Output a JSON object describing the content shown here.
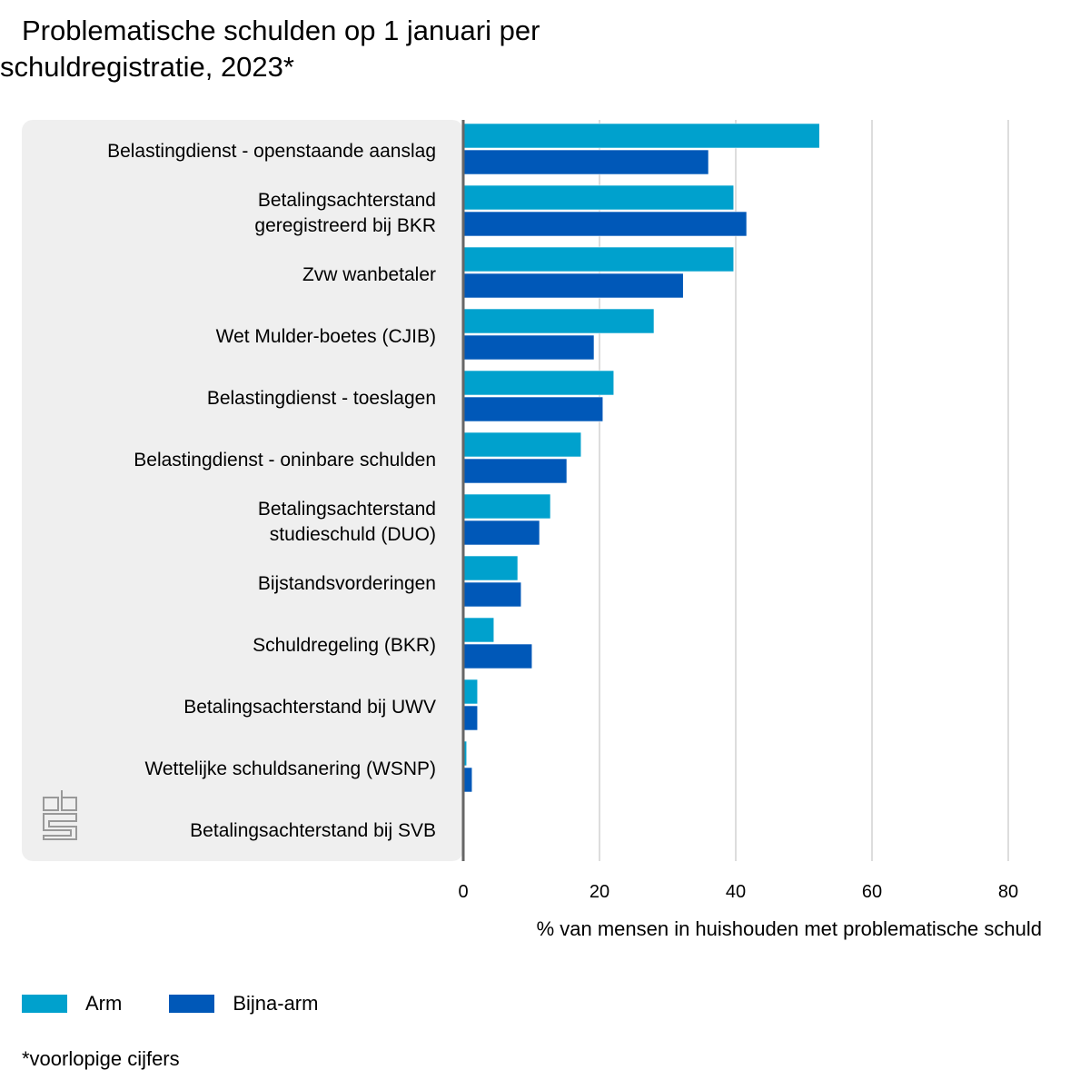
{
  "title_line1": "Problematische schulden op 1 januari per",
  "title_line2": "schuldregistratie, 2023*",
  "footnote": "*voorlopige cijfers",
  "colors": {
    "arm": "#00a1cd",
    "bijna_arm": "#0058b8",
    "panel": "#efefef"
  },
  "chart_data": {
    "type": "bar",
    "orientation": "horizontal",
    "categories": [
      [
        "Belastingdienst - openstaande aanslag"
      ],
      [
        "Betalingsachterstand",
        "geregistreerd bij BKR"
      ],
      [
        "Zvw wanbetaler"
      ],
      [
        "Wet Mulder-boetes (CJIB)"
      ],
      [
        "Belastingdienst - toeslagen"
      ],
      [
        "Belastingdienst - oninbare schulden"
      ],
      [
        "Betalingsachterstand",
        "studieschuld (DUO)"
      ],
      [
        "Bijstandsvorderingen"
      ],
      [
        "Schuldregeling (BKR)"
      ],
      [
        "Betalingsachterstand bij UWV"
      ],
      [
        "Wettelijke schuldsanering (WSNP)"
      ],
      [
        "Betalingsachterstand bij SVB"
      ]
    ],
    "series": [
      {
        "name": "Arm",
        "values": [
          52.3,
          39.7,
          39.7,
          28.0,
          22.1,
          17.3,
          12.8,
          8.0,
          4.5,
          2.1,
          0.5,
          0.2
        ]
      },
      {
        "name": "Bijna-arm",
        "values": [
          36.0,
          41.6,
          32.3,
          19.2,
          20.5,
          15.2,
          11.2,
          8.5,
          10.1,
          2.1,
          1.3,
          0.2
        ]
      }
    ],
    "xlabel": "% van mensen in huishouden met problematische schuld",
    "xlim": [
      0,
      80
    ],
    "xticks": [
      "0",
      "20",
      "40",
      "60",
      "80"
    ],
    "grid": true,
    "legend_placement": "bottom-left"
  }
}
